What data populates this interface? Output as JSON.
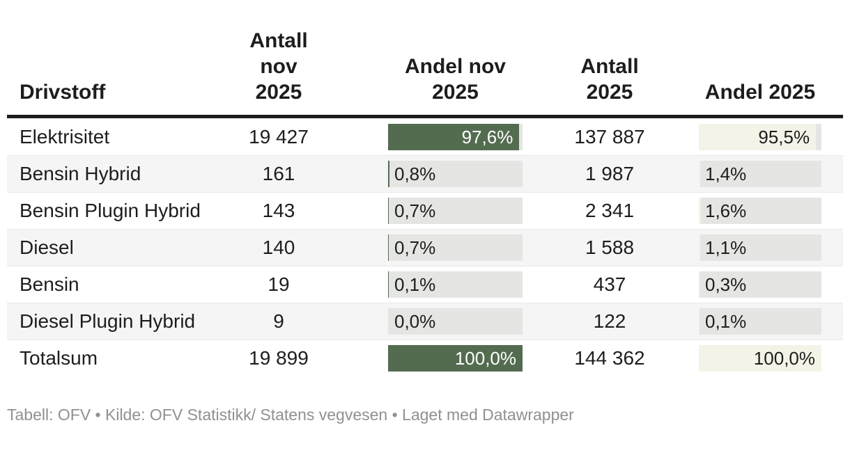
{
  "chart_data": {
    "type": "table",
    "title": "",
    "columns": [
      "Drivstoff",
      "Antall nov 2025",
      "Andel nov 2025",
      "Antall 2025",
      "Andel 2025"
    ],
    "bar_columns": [
      "Andel nov 2025",
      "Andel 2025"
    ],
    "bar_range": [
      0,
      100
    ],
    "rows": [
      {
        "drivstoff": "Elektrisitet",
        "antall_nov_2025": 19427,
        "andel_nov_2025_pct": 97.6,
        "antall_2025": 137887,
        "andel_2025_pct": 95.5
      },
      {
        "drivstoff": "Bensin Hybrid",
        "antall_nov_2025": 161,
        "andel_nov_2025_pct": 0.8,
        "antall_2025": 1987,
        "andel_2025_pct": 1.4
      },
      {
        "drivstoff": "Bensin Plugin Hybrid",
        "antall_nov_2025": 143,
        "andel_nov_2025_pct": 0.7,
        "antall_2025": 2341,
        "andel_2025_pct": 1.6
      },
      {
        "drivstoff": "Diesel",
        "antall_nov_2025": 140,
        "andel_nov_2025_pct": 0.7,
        "antall_2025": 1588,
        "andel_2025_pct": 1.1
      },
      {
        "drivstoff": "Bensin",
        "antall_nov_2025": 19,
        "andel_nov_2025_pct": 0.1,
        "antall_2025": 437,
        "andel_2025_pct": 0.3
      },
      {
        "drivstoff": "Diesel Plugin Hybrid",
        "antall_nov_2025": 9,
        "andel_nov_2025_pct": 0.0,
        "antall_2025": 122,
        "andel_2025_pct": 0.1
      },
      {
        "drivstoff": "Totalsum",
        "antall_nov_2025": 19899,
        "andel_nov_2025_pct": 100.0,
        "antall_2025": 144362,
        "andel_2025_pct": 100.0
      }
    ]
  },
  "table": {
    "header": {
      "col1": "Drivstoff",
      "col2": "Antall nov\n2025",
      "col3": "Andel nov\n2025",
      "col4": "Antall\n2025",
      "col5": "Andel 2025"
    },
    "rows": [
      {
        "label": "Elektrisitet",
        "antall_nov": "19 427",
        "andel_nov": "97,6%",
        "andel_nov_pct": 97.6,
        "antall": "137 887",
        "andel": "95,5%",
        "andel_pct": 95.5
      },
      {
        "label": "Bensin Hybrid",
        "antall_nov": "161",
        "andel_nov": "0,8%",
        "andel_nov_pct": 0.8,
        "antall": "1 987",
        "andel": "1,4%",
        "andel_pct": 1.4
      },
      {
        "label": "Bensin Plugin Hybrid",
        "antall_nov": "143",
        "andel_nov": "0,7%",
        "andel_nov_pct": 0.7,
        "antall": "2 341",
        "andel": "1,6%",
        "andel_pct": 1.6
      },
      {
        "label": "Diesel",
        "antall_nov": "140",
        "andel_nov": "0,7%",
        "andel_nov_pct": 0.7,
        "antall": "1 588",
        "andel": "1,1%",
        "andel_pct": 1.1
      },
      {
        "label": "Bensin",
        "antall_nov": "19",
        "andel_nov": "0,1%",
        "andel_nov_pct": 0.1,
        "antall": "437",
        "andel": "0,3%",
        "andel_pct": 0.3
      },
      {
        "label": "Diesel Plugin Hybrid",
        "antall_nov": "9",
        "andel_nov": "0,0%",
        "andel_nov_pct": 0.0,
        "antall": "122",
        "andel": "0,1%",
        "andel_pct": 0.1
      },
      {
        "label": "Totalsum",
        "antall_nov": "19 899",
        "andel_nov": "100,0%",
        "andel_nov_pct": 100,
        "antall": "144 362",
        "andel": "100,0%",
        "andel_pct": 100
      }
    ]
  },
  "footer": {
    "text": "Tabell: OFV • Kilde: OFV Statistikk/ Statens vegvesen • Laget med Datawrapper"
  },
  "colors": {
    "bar_green": "#536c50",
    "bar_cream": "#f3f3e7",
    "bar_track": "#e5e5e3",
    "row_stripe": "#f5f5f5",
    "header_rule": "#1d1d1d",
    "text": "#1d1d1d",
    "footer_text": "#909090"
  }
}
